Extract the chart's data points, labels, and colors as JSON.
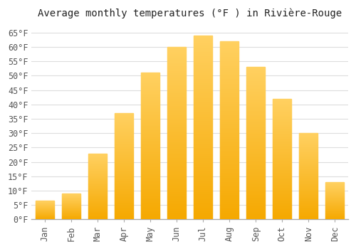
{
  "title": "Average monthly temperatures (°F ) in Rivière-Rouge",
  "months": [
    "Jan",
    "Feb",
    "Mar",
    "Apr",
    "May",
    "Jun",
    "Jul",
    "Aug",
    "Sep",
    "Oct",
    "Nov",
    "Dec"
  ],
  "values": [
    6.5,
    9.0,
    23.0,
    37.0,
    51.0,
    60.0,
    64.0,
    62.0,
    53.0,
    42.0,
    30.0,
    13.0
  ],
  "bar_color": "#FFC020",
  "bar_color_bottom": "#F5A800",
  "yticks": [
    0,
    5,
    10,
    15,
    20,
    25,
    30,
    35,
    40,
    45,
    50,
    55,
    60,
    65
  ],
  "ylim": [
    0,
    68
  ],
  "background_color": "#ffffff",
  "plot_bg_color": "#ffffff",
  "grid_color": "#dddddd",
  "title_fontsize": 10,
  "tick_fontsize": 8.5,
  "bar_width": 0.7
}
